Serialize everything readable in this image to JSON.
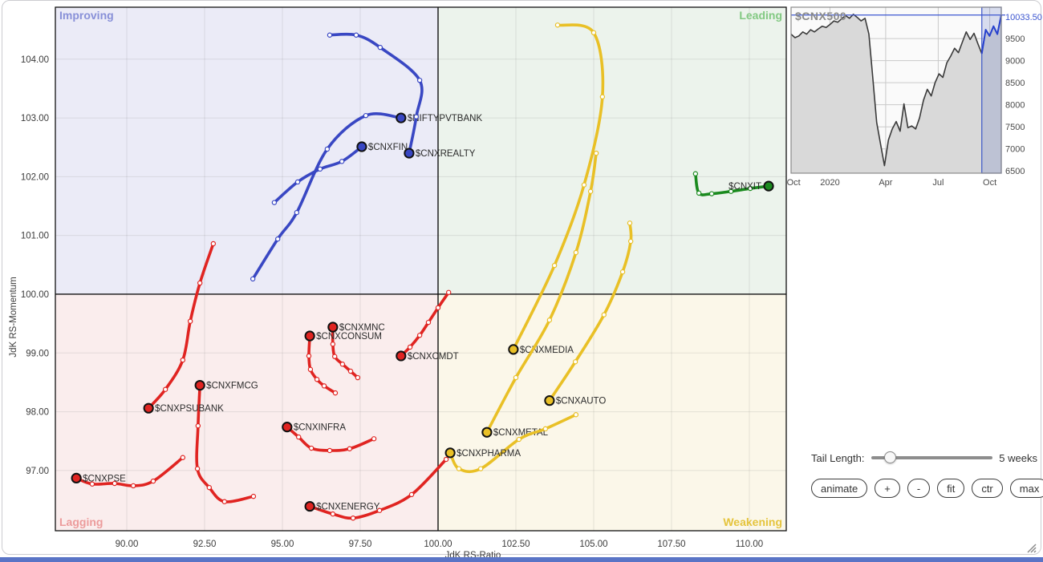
{
  "panel": {
    "bottom_bar_color": "#5a74c6"
  },
  "controls": {
    "tail_label": "Tail Length:",
    "tail_value": "5 weeks",
    "buttons": [
      "animate",
      "+",
      "-",
      "fit",
      "ctr",
      "max"
    ]
  },
  "chart_data": [
    {
      "id": "rrg",
      "type": "scatter",
      "title": "Relative Rotation Graph",
      "xlabel": "JdK RS-Ratio",
      "ylabel": "JdK RS-Momentum",
      "xlim": [
        87.706,
        111.186
      ],
      "ylim": [
        95.975,
        104.884
      ],
      "x_ticks": [
        90.0,
        92.5,
        95.0,
        97.5,
        100.0,
        102.5,
        105.0,
        107.5,
        110.0
      ],
      "y_ticks": [
        97.0,
        98.0,
        99.0,
        100.0,
        101.0,
        102.0,
        103.0,
        104.0
      ],
      "center": [
        100,
        100
      ],
      "grid": true,
      "quadrants": [
        {
          "pos": "top-left",
          "label": "Improving",
          "label_color": "#8890d8",
          "bg": "#ebebf7"
        },
        {
          "pos": "top-right",
          "label": "Leading",
          "label_color": "#82c982",
          "bg": "#ecf3ec"
        },
        {
          "pos": "bottom-left",
          "label": "Lagging",
          "label_color": "#ec9b9b",
          "bg": "#faeded"
        },
        {
          "pos": "bottom-right",
          "label": "Weakening",
          "label_color": "#e5c43d",
          "bg": "#fbf7e9"
        }
      ],
      "series": [
        {
          "name": "$NIFTYPVTBANK",
          "color": "#3947c3",
          "label_side": "right",
          "points": [
            [
              94.05,
              100.26
            ],
            [
              94.85,
              100.94
            ],
            [
              95.46,
              101.39
            ],
            [
              96.44,
              102.47
            ],
            [
              97.68,
              103.04
            ],
            [
              98.81,
              103.0
            ]
          ]
        },
        {
          "name": "$CNXFIN",
          "color": "#3947c3",
          "label_side": "right",
          "points": [
            [
              94.74,
              101.56
            ],
            [
              95.49,
              101.91
            ],
            [
              96.21,
              102.13
            ],
            [
              96.91,
              102.26
            ],
            [
              97.55,
              102.51
            ]
          ]
        },
        {
          "name": "$CNXREALTY",
          "color": "#3947c3",
          "label_side": "right",
          "points": [
            [
              96.52,
              104.41
            ],
            [
              97.37,
              104.41
            ],
            [
              98.14,
              104.2
            ],
            [
              99.41,
              103.64
            ],
            [
              99.3,
              103.02
            ],
            [
              99.07,
              102.4
            ]
          ]
        },
        {
          "name": "$CNXIT",
          "color": "#1a8a1e",
          "label_side": "left",
          "points": [
            [
              108.27,
              102.05
            ],
            [
              108.38,
              101.72
            ],
            [
              108.79,
              101.71
            ],
            [
              109.41,
              101.75
            ],
            [
              110.03,
              101.8
            ],
            [
              110.62,
              101.84
            ]
          ]
        },
        {
          "name": "$CNXMEDIA",
          "color": "#e9c026",
          "label_side": "right",
          "points": [
            [
              103.84,
              104.58
            ],
            [
              105.0,
              104.45
            ],
            [
              105.28,
              103.36
            ],
            [
              104.69,
              101.86
            ],
            [
              103.74,
              100.49
            ],
            [
              102.42,
              99.06
            ]
          ]
        },
        {
          "name": "$CNXAUTO",
          "color": "#e9c026",
          "label_side": "right",
          "points": [
            [
              106.16,
              101.21
            ],
            [
              106.19,
              100.9
            ],
            [
              105.93,
              100.38
            ],
            [
              105.33,
              99.65
            ],
            [
              104.41,
              98.85
            ],
            [
              103.58,
              98.19
            ]
          ]
        },
        {
          "name": "$CNXMETAL",
          "color": "#e9c026",
          "label_side": "right",
          "points": [
            [
              105.08,
              102.4
            ],
            [
              104.9,
              101.75
            ],
            [
              104.43,
              100.71
            ],
            [
              103.58,
              99.56
            ],
            [
              102.5,
              98.58
            ],
            [
              101.57,
              97.65
            ]
          ]
        },
        {
          "name": "$CNXPHARMA",
          "color": "#e9c026",
          "label_side": "right",
          "points": [
            [
              104.43,
              97.95
            ],
            [
              103.45,
              97.71
            ],
            [
              102.6,
              97.53
            ],
            [
              101.37,
              97.03
            ],
            [
              100.67,
              97.03
            ],
            [
              100.39,
              97.3
            ]
          ]
        },
        {
          "name": "$CNXMNC",
          "color": "#e02421",
          "label_side": "right",
          "points": [
            [
              97.42,
              98.58
            ],
            [
              97.19,
              98.69
            ],
            [
              96.93,
              98.81
            ],
            [
              96.68,
              98.94
            ],
            [
              96.62,
              99.15
            ],
            [
              96.62,
              99.44
            ]
          ]
        },
        {
          "name": "$CNXCONSUM",
          "color": "#e02421",
          "label_side": "right",
          "points": [
            [
              96.7,
              98.32
            ],
            [
              96.34,
              98.44
            ],
            [
              96.11,
              98.55
            ],
            [
              95.9,
              98.72
            ],
            [
              95.85,
              98.95
            ],
            [
              95.88,
              99.29
            ]
          ]
        },
        {
          "name": "$CNXCMDT",
          "color": "#e02421",
          "label_side": "right",
          "points": [
            [
              100.34,
              100.03
            ],
            [
              100.0,
              99.77
            ],
            [
              99.69,
              99.52
            ],
            [
              99.41,
              99.3
            ],
            [
              99.1,
              99.1
            ],
            [
              98.81,
              98.95
            ]
          ]
        },
        {
          "name": "$CNXFMCG",
          "color": "#e02421",
          "label_side": "right",
          "points": [
            [
              94.07,
              96.56
            ],
            [
              93.14,
              96.47
            ],
            [
              92.65,
              96.71
            ],
            [
              92.27,
              97.03
            ],
            [
              92.29,
              97.76
            ],
            [
              92.35,
              98.45
            ]
          ]
        },
        {
          "name": "$CNXPSUBANK",
          "color": "#e02421",
          "label_side": "right",
          "points": [
            [
              92.78,
              100.86
            ],
            [
              92.35,
              100.19
            ],
            [
              92.04,
              99.54
            ],
            [
              91.8,
              98.88
            ],
            [
              91.24,
              98.38
            ],
            [
              90.7,
              98.06
            ]
          ]
        },
        {
          "name": "$CNXINFRA",
          "color": "#e02421",
          "label_side": "right",
          "points": [
            [
              97.94,
              97.54
            ],
            [
              97.16,
              97.37
            ],
            [
              96.52,
              97.34
            ],
            [
              95.93,
              97.38
            ],
            [
              95.52,
              97.57
            ],
            [
              95.15,
              97.74
            ]
          ]
        },
        {
          "name": "$CNXPSE",
          "color": "#e02421",
          "label_side": "right",
          "points": [
            [
              91.8,
              97.22
            ],
            [
              90.85,
              96.82
            ],
            [
              90.21,
              96.74
            ],
            [
              89.61,
              96.78
            ],
            [
              88.89,
              96.77
            ],
            [
              88.38,
              96.87
            ]
          ]
        },
        {
          "name": "$CNXENERGY",
          "color": "#e02421",
          "label_side": "right",
          "points": [
            [
              100.26,
              97.19
            ],
            [
              99.15,
              96.59
            ],
            [
              98.12,
              96.32
            ],
            [
              97.27,
              96.19
            ],
            [
              96.62,
              96.26
            ],
            [
              95.88,
              96.39
            ]
          ]
        }
      ]
    },
    {
      "id": "price-inset",
      "type": "area",
      "title": "$CNX500",
      "last_value": "10033.50",
      "x_labels": [
        {
          "label": "Oct",
          "t": 0.012
        },
        {
          "label": "2020",
          "t": 0.185
        },
        {
          "label": "Apr",
          "t": 0.45
        },
        {
          "label": "Jul",
          "t": 0.7
        },
        {
          "label": "Oct",
          "t": 0.945
        }
      ],
      "y_ticks": [
        6500,
        7000,
        7500,
        8000,
        8500,
        9000,
        9500
      ],
      "ylim": [
        6450,
        10210
      ],
      "values": [
        9600,
        9520,
        9560,
        9650,
        9600,
        9700,
        9650,
        9720,
        9780,
        9750,
        9820,
        9900,
        9870,
        9950,
        10020,
        9960,
        10050,
        9980,
        9900,
        9960,
        9600,
        8600,
        7600,
        7100,
        6620,
        7200,
        7450,
        7620,
        7400,
        8020,
        7480,
        7520,
        7450,
        7700,
        8100,
        8350,
        8200,
        8500,
        8700,
        8620,
        8950,
        9100,
        9280,
        9180,
        9420,
        9650,
        9480,
        9620,
        9380,
        9160,
        9700,
        9560,
        9780,
        9600,
        10033.5
      ],
      "highlight_last_n": 6,
      "line_color": "#3a3a3a",
      "area_color": "#d9d9d9",
      "highlight_color": "#3b55c8",
      "last_value_num": 10033.5
    }
  ]
}
